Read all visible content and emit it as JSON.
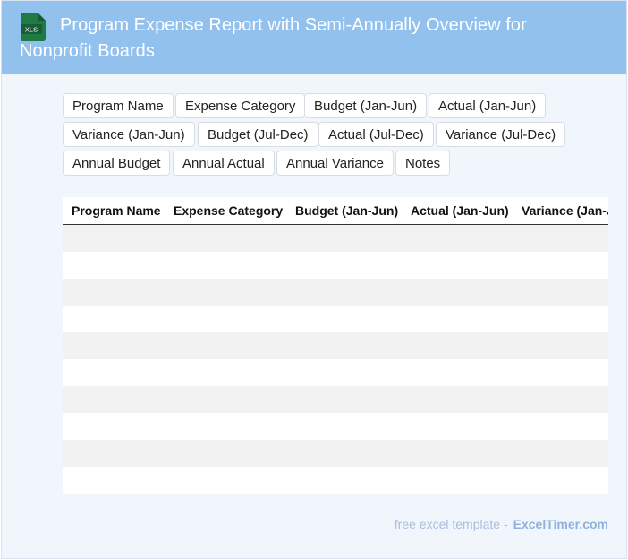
{
  "header": {
    "title": "Program Expense Report with Semi-Annually Overview for Nonprofit Boards",
    "icon_label": "XLS",
    "background": "#93c1ee",
    "icon_color": "#1f7a45"
  },
  "chips": [
    "Program Name",
    "Expense Category",
    "Budget (Jan-Jun)",
    "Actual (Jan-Jun)",
    "Variance (Jan-Jun)",
    "Budget (Jul-Dec)",
    "Actual (Jul-Dec)",
    "Variance (Jul-Dec)",
    "Annual Budget",
    "Annual Actual",
    "Annual Variance",
    "Notes"
  ],
  "table": {
    "columns": [
      "Program Name",
      "Expense Category",
      "Budget (Jan-Jun)",
      "Actual (Jan-Jun)",
      "Variance (Jan-Jun)"
    ],
    "row_count": 10
  },
  "footer": {
    "text": "free excel template -",
    "brand": "ExcelTimer.com"
  }
}
